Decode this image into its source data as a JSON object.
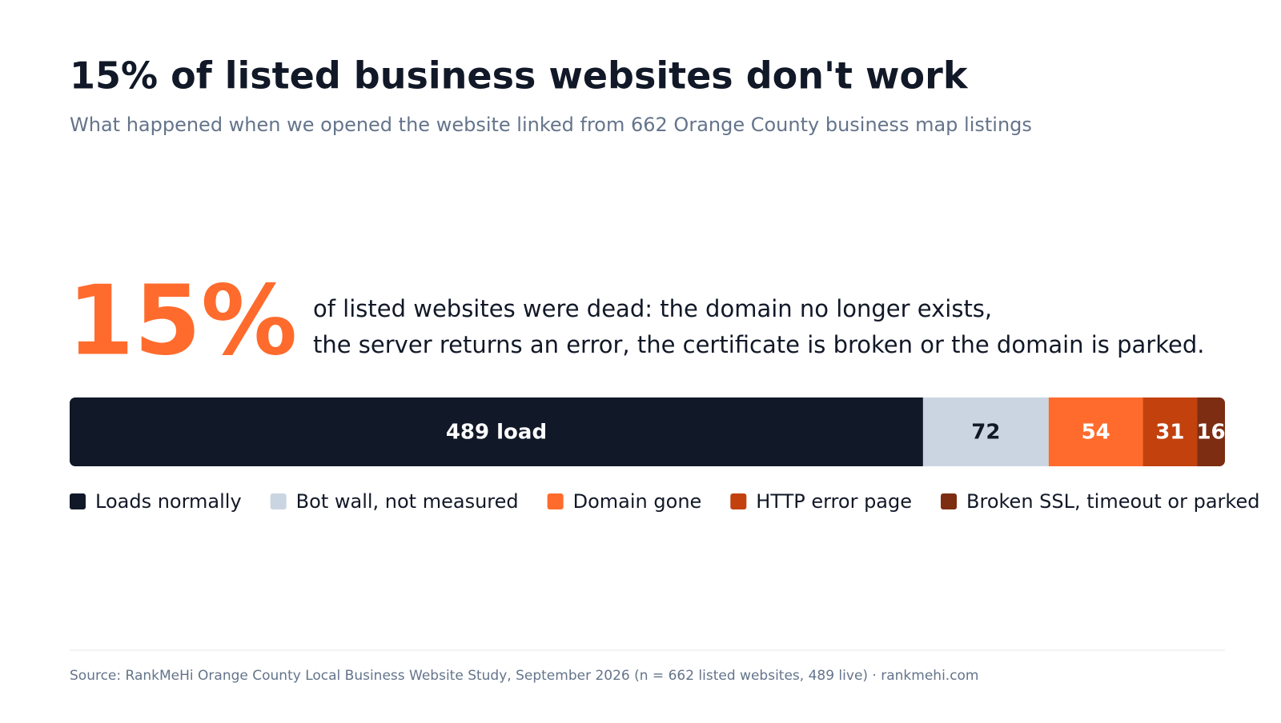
{
  "chart_data": {
    "type": "stacked-bar",
    "title": "15% of listed business websites don't work",
    "subtitle": "What happened when we opened the website linked from 662 Orange County business map listings",
    "headline": "15%",
    "description": [
      "of listed websites were dead: the domain no longer exists,",
      "the server returns an error, the certificate is broken or the domain is parked."
    ],
    "series": [
      {
        "name": "Loads normally",
        "color": "#111827",
        "values": [
          489
        ],
        "value_labels": [
          "489 load"
        ]
      },
      {
        "name": "Bot wall, not measured",
        "color": "#cbd5e1",
        "values": [
          72
        ]
      },
      {
        "name": "Domain gone",
        "color": "#ff6b2c",
        "values": [
          54
        ]
      },
      {
        "name": "HTTP error page",
        "color": "#c2410c",
        "values": [
          31
        ]
      },
      {
        "name": "Broken SSL, timeout or parked",
        "color": "#7c2d12",
        "values": [
          16
        ]
      }
    ],
    "source": "Source: RankMeHi Orange County Local Business Website Study, September 2026 (n = 662 listed websites, 489 live) · rankmehi.com"
  }
}
